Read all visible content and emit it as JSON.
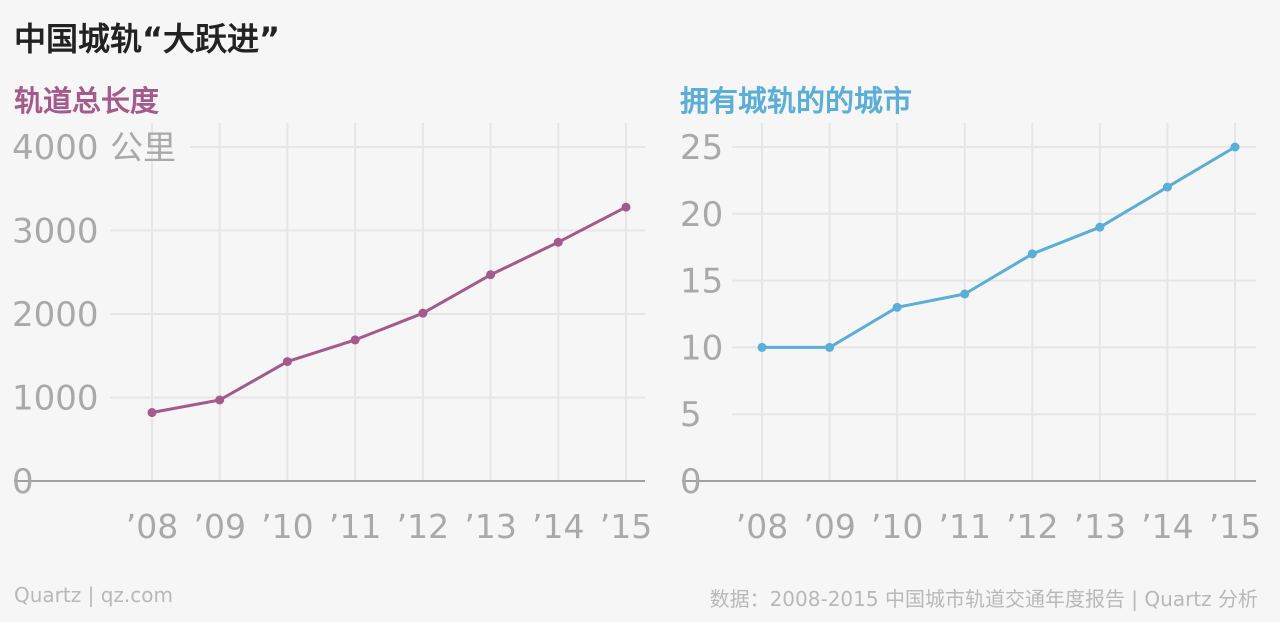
{
  "title": "中国城轨“大跃进”",
  "footer": {
    "credit": "Quartz | qz.com",
    "source": "数据：2008-2015 中国城市轨道交通年度报告 | Quartz 分析"
  },
  "colors": {
    "left": "#a45a8c",
    "right": "#5aaed8",
    "axis": "#a0a0a0",
    "grid": "#e6e6e6",
    "tick": "#a9a9a9"
  },
  "chart_data": [
    {
      "type": "line",
      "title": "轨道总长度",
      "ylabel": "公里",
      "categories": [
        "’08",
        "’09",
        "’10",
        "’11",
        "’12",
        "’13",
        "’14",
        "’15"
      ],
      "series": [
        {
          "values": [
            820,
            970,
            1430,
            1690,
            2010,
            2470,
            2860,
            3280
          ]
        }
      ],
      "yticks": [
        0,
        1000,
        2000,
        3000,
        4000
      ],
      "ytick_labels": [
        "0",
        "1000",
        "2000",
        "3000",
        "4000"
      ],
      "ylim": [
        0,
        4000
      ],
      "grid": true
    },
    {
      "type": "line",
      "title": "拥有城轨的的城市",
      "ylabel": "",
      "categories": [
        "’08",
        "’09",
        "’10",
        "’11",
        "’12",
        "’13",
        "’14",
        "’15"
      ],
      "series": [
        {
          "values": [
            10,
            10,
            13,
            14,
            17,
            19,
            22,
            25
          ]
        }
      ],
      "yticks": [
        0,
        5,
        10,
        15,
        20,
        25
      ],
      "ytick_labels": [
        "0",
        "5",
        "10",
        "15",
        "20",
        "25"
      ],
      "ylim": [
        0,
        25
      ],
      "grid": true
    }
  ]
}
